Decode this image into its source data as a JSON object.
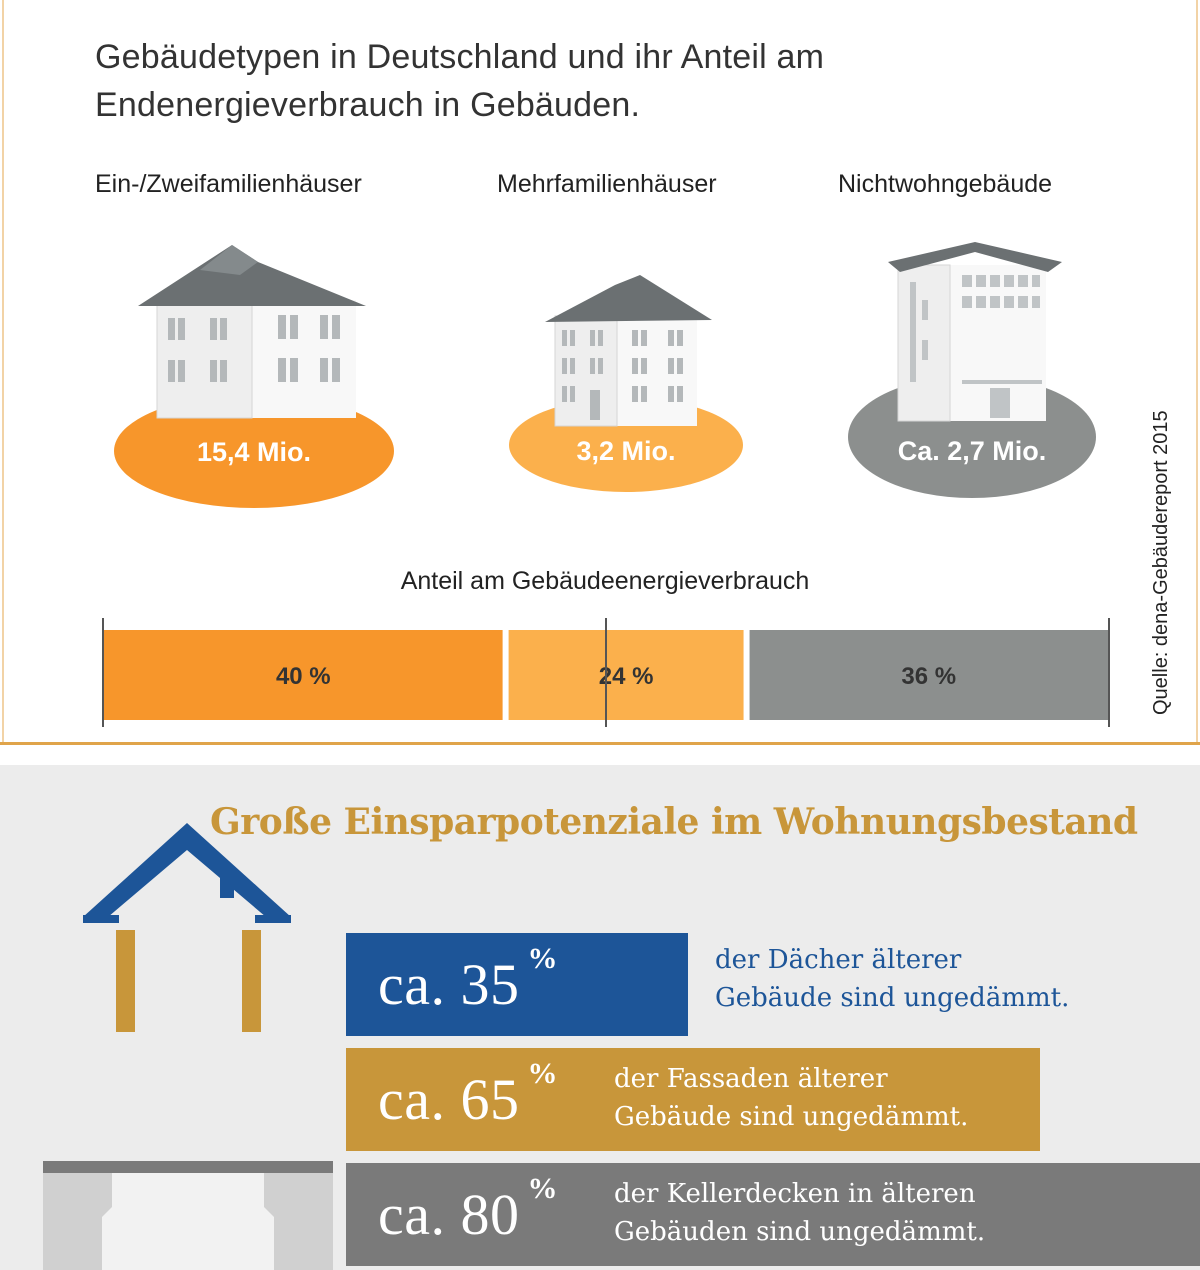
{
  "top": {
    "title_line1": "Gebäudetypen in Deutschland und ihr Anteil am",
    "title_line2": "Endenergieverbrauch in Gebäuden.",
    "source": "Quelle: dena-Gebäudereport 2015",
    "share_title": "Anteil am Gebäudeenergieverbrauch"
  },
  "chart_data": {
    "type": "bar",
    "stacked": true,
    "title": "Anteil am Gebäudeenergieverbrauch",
    "categories": [
      "Ein-/Zweifamilienhäuser",
      "Mehrfamilienhäuser",
      "Nichtwohngebäude"
    ],
    "counts": [
      "15,4 Mio.",
      "3,2 Mio.",
      "Ca. 2,7 Mio."
    ],
    "values": [
      40,
      24,
      36
    ],
    "value_labels": [
      "40 %",
      "24 %",
      "36 %"
    ],
    "colors": [
      "#f7962b",
      "#fbb04c",
      "#8c8f8e"
    ],
    "unit": "%"
  },
  "bottom": {
    "title": "Große Einsparpotenziale im Wohnungsbestand",
    "stats": [
      {
        "prefix": "ca. 35",
        "unit": "%",
        "line1": "der Dächer älterer",
        "line2": "Gebäude sind ungedämmt.",
        "color": "#1d5598"
      },
      {
        "prefix": "ca. 65",
        "unit": "%",
        "line1": "der Fassaden älterer",
        "line2": "Gebäude sind ungedämmt.",
        "color": "#c8963a"
      },
      {
        "prefix": "ca. 80",
        "unit": "%",
        "line1": "der Kellerdecken in älteren",
        "line2": "Gebäuden sind ungedämmt.",
        "color": "#7a7a7a"
      }
    ]
  }
}
